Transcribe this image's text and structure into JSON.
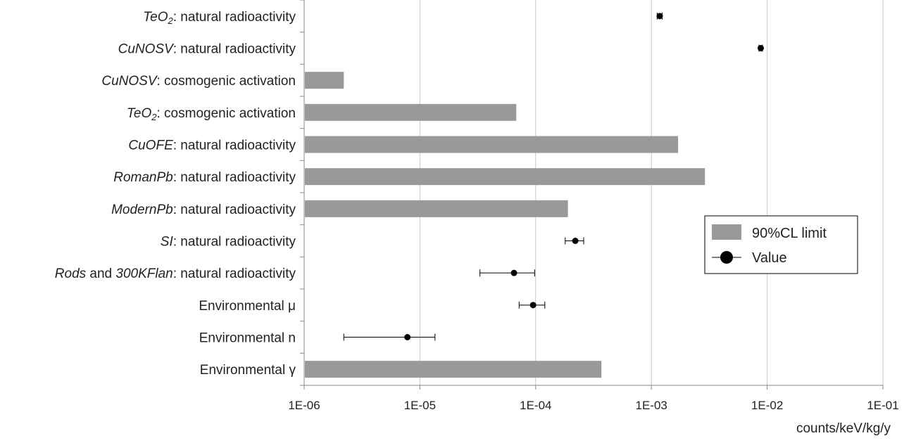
{
  "chart_data": {
    "type": "bar",
    "orientation": "horizontal",
    "x_scale": "log",
    "xlim": [
      "1E-06",
      "1E-01"
    ],
    "xlabel": "counts/keV/kg/y",
    "x_ticks": [
      "1E-06",
      "1E-05",
      "1E-04",
      "1E-03",
      "1E-02",
      "1E-01"
    ],
    "grid": "vertical",
    "legend_position": "right",
    "legend": [
      {
        "name": "90%CL limit",
        "color": "#999999",
        "marker": "bar"
      },
      {
        "name": "Value",
        "color": "#000000",
        "marker": "point-with-errorbar"
      }
    ],
    "categories": [
      {
        "parts": [
          {
            "t": "TeO",
            "i": true
          },
          {
            "t": "2",
            "i": true,
            "sub": true
          },
          {
            "t": ": natural radioactivity",
            "i": false
          }
        ],
        "type": "value",
        "value": 0.00118,
        "err_low": 0.00112,
        "err_high": 0.00124
      },
      {
        "parts": [
          {
            "t": "CuNOSV",
            "i": true
          },
          {
            "t": ": natural radioactivity",
            "i": false
          }
        ],
        "type": "value",
        "value": 0.0088,
        "err_low": 0.0085,
        "err_high": 0.0091
      },
      {
        "parts": [
          {
            "t": "CuNOSV",
            "i": true
          },
          {
            "t": ": cosmogenic activation",
            "i": false
          }
        ],
        "type": "limit",
        "value": 2.2e-06
      },
      {
        "parts": [
          {
            "t": "TeO",
            "i": true
          },
          {
            "t": "2",
            "i": true,
            "sub": true
          },
          {
            "t": ": cosmogenic activation",
            "i": false
          }
        ],
        "type": "limit",
        "value": 6.8e-05
      },
      {
        "parts": [
          {
            "t": "CuOFE",
            "i": true
          },
          {
            "t": ": natural radioactivity",
            "i": false
          }
        ],
        "type": "limit",
        "value": 0.0017
      },
      {
        "parts": [
          {
            "t": "RomanPb",
            "i": true
          },
          {
            "t": ": natural radioactivity",
            "i": false
          }
        ],
        "type": "limit",
        "value": 0.0029
      },
      {
        "parts": [
          {
            "t": "ModernPb",
            "i": true
          },
          {
            "t": ": natural radioactivity",
            "i": false
          }
        ],
        "type": "limit",
        "value": 0.00019
      },
      {
        "parts": [
          {
            "t": "SI",
            "i": true
          },
          {
            "t": ": natural radioactivity",
            "i": false
          }
        ],
        "type": "value",
        "value": 0.00022,
        "err_low": 0.00018,
        "err_high": 0.00026
      },
      {
        "parts": [
          {
            "t": "Rods",
            "i": true
          },
          {
            "t": " and ",
            "i": false
          },
          {
            "t": "300KFlan",
            "i": true
          },
          {
            "t": ": natural radioactivity",
            "i": false
          }
        ],
        "type": "value",
        "value": 6.5e-05,
        "err_low": 3.3e-05,
        "err_high": 9.8e-05
      },
      {
        "parts": [
          {
            "t": "Environmental μ",
            "i": false
          }
        ],
        "type": "value",
        "value": 9.5e-05,
        "err_low": 7.2e-05,
        "err_high": 0.00012
      },
      {
        "parts": [
          {
            "t": "Environmental n",
            "i": false
          }
        ],
        "type": "value",
        "value": 7.8e-06,
        "err_low": 2.2e-06,
        "err_high": 1.35e-05
      },
      {
        "parts": [
          {
            "t": "Environmental γ",
            "i": false
          }
        ],
        "type": "limit",
        "value": 0.00037
      }
    ]
  }
}
